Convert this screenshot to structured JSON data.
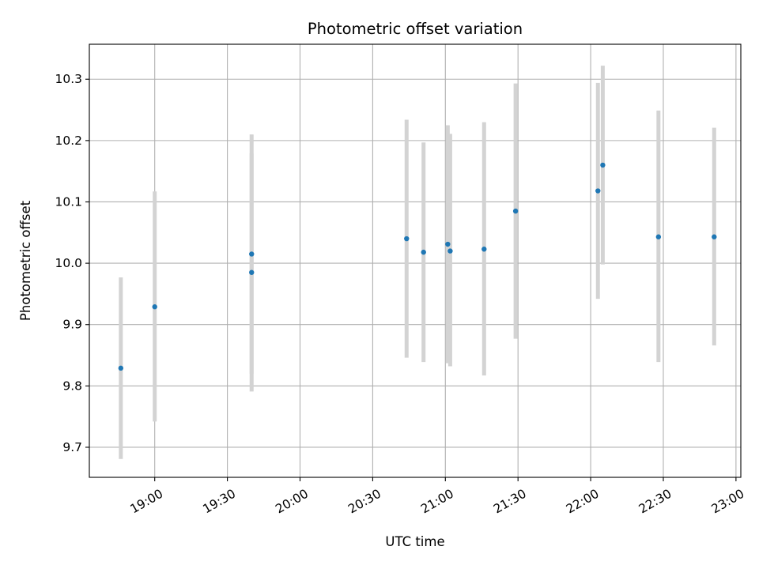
{
  "chart_data": {
    "type": "scatter",
    "title": "Photometric offset variation",
    "xlabel": "UTC time",
    "ylabel": "Photometric offset",
    "xlim": [
      "18:33",
      "23:02"
    ],
    "ylim": [
      9.651,
      10.357
    ],
    "grid": true,
    "x_ticks": [
      "19:00",
      "19:30",
      "20:00",
      "20:30",
      "21:00",
      "21:30",
      "22:00",
      "22:30",
      "23:00"
    ],
    "y_ticks": [
      "9.7",
      "9.8",
      "9.9",
      "10.0",
      "10.1",
      "10.2",
      "10.3"
    ],
    "colors": {
      "points": "#1f77b4",
      "error_bars": "#d3d3d3",
      "grid": "#b0b0b0"
    },
    "series": [
      {
        "points": [
          {
            "x": "18:46",
            "y": 9.829,
            "err_low": 9.681,
            "err_high": 9.977
          },
          {
            "x": "19:00",
            "y": 9.929,
            "err_low": 9.742,
            "err_high": 10.117
          },
          {
            "x": "19:40",
            "y": 10.015,
            "err_low": 9.82,
            "err_high": 10.21
          },
          {
            "x": "19:40",
            "y": 9.985,
            "err_low": 9.791,
            "err_high": 10.179
          },
          {
            "x": "20:44",
            "y": 10.04,
            "err_low": 9.846,
            "err_high": 10.234
          },
          {
            "x": "20:51",
            "y": 10.018,
            "err_low": 9.839,
            "err_high": 10.197
          },
          {
            "x": "21:01",
            "y": 10.031,
            "err_low": 9.837,
            "err_high": 10.225
          },
          {
            "x": "21:02",
            "y": 10.02,
            "err_low": 9.832,
            "err_high": 10.211
          },
          {
            "x": "21:16",
            "y": 10.023,
            "err_low": 9.817,
            "err_high": 10.23
          },
          {
            "x": "21:29",
            "y": 10.085,
            "err_low": 9.877,
            "err_high": 10.293
          },
          {
            "x": "22:03",
            "y": 10.118,
            "err_low": 9.942,
            "err_high": 10.294
          },
          {
            "x": "22:05",
            "y": 10.16,
            "err_low": 9.998,
            "err_high": 10.322
          },
          {
            "x": "22:28",
            "y": 10.043,
            "err_low": 9.839,
            "err_high": 10.249
          },
          {
            "x": "22:51",
            "y": 10.043,
            "err_low": 9.866,
            "err_high": 10.221
          }
        ]
      }
    ]
  }
}
